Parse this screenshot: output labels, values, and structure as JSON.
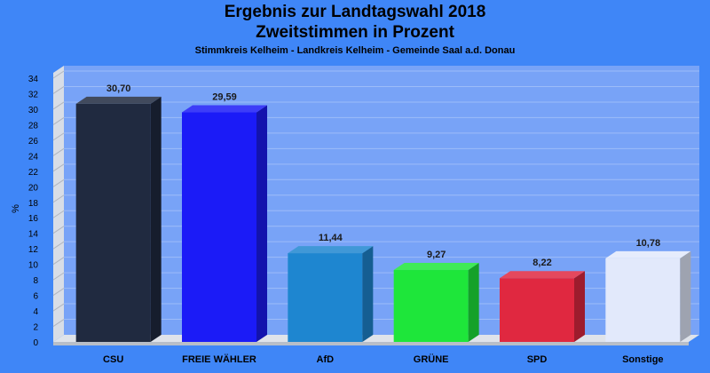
{
  "chart_data": {
    "type": "bar",
    "title_lines": [
      "Ergebnis zur Landtagswahl 2018",
      "Zweitstimmen in Prozent"
    ],
    "subtitle": "Stimmkreis Kelheim - Landkreis Kelheim - Gemeinde Saal a.d. Donau",
    "ylabel": "%",
    "xlabel": "",
    "ylim": [
      0,
      34
    ],
    "ytick_step": 2,
    "grid": true,
    "categories": [
      "CSU",
      "FREIE WÄHLER",
      "AfD",
      "GRÜNE",
      "SPD",
      "Sonstige"
    ],
    "values": [
      30.7,
      29.59,
      11.44,
      9.27,
      8.22,
      10.78
    ],
    "value_labels": [
      "30,70",
      "29,59",
      "11,44",
      "9,27",
      "8,22",
      "10,78"
    ],
    "colors": [
      "#202a40",
      "#1b1bf7",
      "#1e86d0",
      "#1ee63a",
      "#e02840",
      "#e2e9fb"
    ]
  }
}
